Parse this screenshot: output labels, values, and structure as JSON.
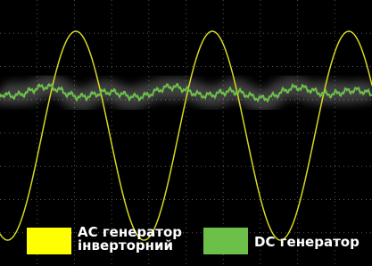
{
  "legend": {
    "items": [
      {
        "lines": [
          "AC генератор",
          "інверторний"
        ],
        "color": "#ffff00"
      },
      {
        "lines": [
          "DC генератор"
        ],
        "color": "#6cc04a"
      }
    ]
  }
}
